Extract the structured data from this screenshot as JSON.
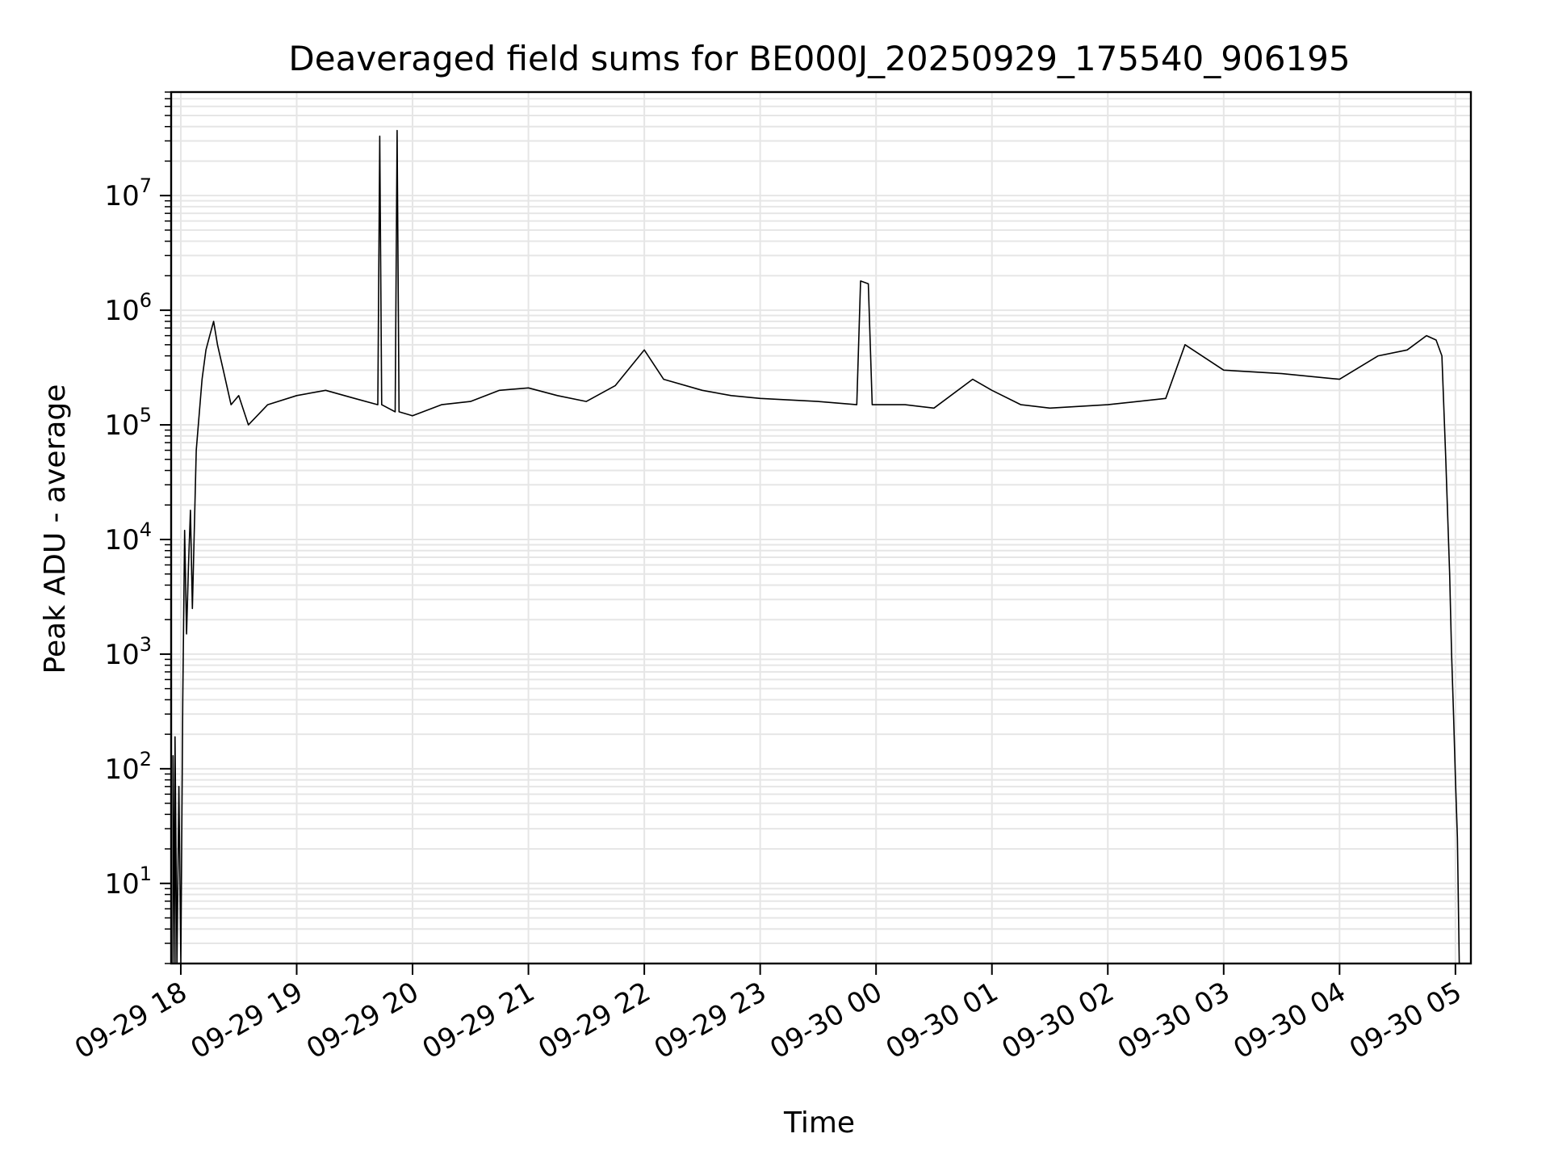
{
  "chart_data": {
    "type": "line",
    "title": "Deaveraged field sums for BE000J_20250929_175540_906195",
    "xlabel": "Time",
    "ylabel": "Peak ADU - average",
    "y_scale": "log",
    "ylim": [
      2,
      80000000
    ],
    "xlim": [
      "2025-09-29 17:55",
      "2025-09-30 05:08"
    ],
    "grid": true,
    "legend": "none",
    "line_color": "#000000",
    "grid_color": "#e6e6e6",
    "x_ticks": [
      {
        "label": "09-29 18",
        "time": "2025-09-29 18:00"
      },
      {
        "label": "09-29 19",
        "time": "2025-09-29 19:00"
      },
      {
        "label": "09-29 20",
        "time": "2025-09-29 20:00"
      },
      {
        "label": "09-29 21",
        "time": "2025-09-29 21:00"
      },
      {
        "label": "09-29 22",
        "time": "2025-09-29 22:00"
      },
      {
        "label": "09-29 23",
        "time": "2025-09-29 23:00"
      },
      {
        "label": "09-30 00",
        "time": "2025-09-30 00:00"
      },
      {
        "label": "09-30 01",
        "time": "2025-09-30 01:00"
      },
      {
        "label": "09-30 02",
        "time": "2025-09-30 02:00"
      },
      {
        "label": "09-30 03",
        "time": "2025-09-30 03:00"
      },
      {
        "label": "09-30 04",
        "time": "2025-09-30 04:00"
      },
      {
        "label": "09-30 05",
        "time": "2025-09-30 05:00"
      }
    ],
    "y_ticks": [
      {
        "base": "10",
        "exp": "1",
        "value": 10
      },
      {
        "base": "10",
        "exp": "2",
        "value": 100
      },
      {
        "base": "10",
        "exp": "3",
        "value": 1000
      },
      {
        "base": "10",
        "exp": "4",
        "value": 10000
      },
      {
        "base": "10",
        "exp": "5",
        "value": 100000
      },
      {
        "base": "10",
        "exp": "6",
        "value": 1000000
      },
      {
        "base": "10",
        "exp": "7",
        "value": 10000000
      }
    ],
    "series": [
      {
        "points": [
          [
            "2025-09-29 17:56",
            2
          ],
          [
            "2025-09-29 17:56",
            130
          ],
          [
            "2025-09-29 17:57",
            2
          ],
          [
            "2025-09-29 17:57",
            190
          ],
          [
            "2025-09-29 17:58",
            2
          ],
          [
            "2025-09-29 17:59",
            70
          ],
          [
            "2025-09-29 18:00",
            2
          ],
          [
            "2025-09-29 18:01",
            400
          ],
          [
            "2025-09-29 18:02",
            12000
          ],
          [
            "2025-09-29 18:03",
            1500
          ],
          [
            "2025-09-29 18:04",
            6000
          ],
          [
            "2025-09-29 18:05",
            18000
          ],
          [
            "2025-09-29 18:06",
            2500
          ],
          [
            "2025-09-29 18:08",
            60000
          ],
          [
            "2025-09-29 18:11",
            250000
          ],
          [
            "2025-09-29 18:13",
            450000
          ],
          [
            "2025-09-29 18:15",
            600000
          ],
          [
            "2025-09-29 18:17",
            800000
          ],
          [
            "2025-09-29 18:19",
            500000
          ],
          [
            "2025-09-29 18:22",
            300000
          ],
          [
            "2025-09-29 18:26",
            150000
          ],
          [
            "2025-09-29 18:30",
            180000
          ],
          [
            "2025-09-29 18:35",
            100000
          ],
          [
            "2025-09-29 18:45",
            150000
          ],
          [
            "2025-09-29 19:00",
            180000
          ],
          [
            "2025-09-29 19:15",
            200000
          ],
          [
            "2025-09-29 19:30",
            170000
          ],
          [
            "2025-09-29 19:42",
            150000
          ],
          [
            "2025-09-29 19:43",
            33000000
          ],
          [
            "2025-09-29 19:44",
            150000
          ],
          [
            "2025-09-29 19:51",
            130000
          ],
          [
            "2025-09-29 19:52",
            37000000
          ],
          [
            "2025-09-29 19:53",
            130000
          ],
          [
            "2025-09-29 20:00",
            120000
          ],
          [
            "2025-09-29 20:15",
            150000
          ],
          [
            "2025-09-29 20:30",
            160000
          ],
          [
            "2025-09-29 20:45",
            200000
          ],
          [
            "2025-09-29 21:00",
            210000
          ],
          [
            "2025-09-29 21:15",
            180000
          ],
          [
            "2025-09-29 21:30",
            160000
          ],
          [
            "2025-09-29 21:45",
            220000
          ],
          [
            "2025-09-29 22:00",
            450000
          ],
          [
            "2025-09-29 22:10",
            250000
          ],
          [
            "2025-09-29 22:30",
            200000
          ],
          [
            "2025-09-29 22:45",
            180000
          ],
          [
            "2025-09-29 23:00",
            170000
          ],
          [
            "2025-09-29 23:30",
            160000
          ],
          [
            "2025-09-29 23:50",
            150000
          ],
          [
            "2025-09-29 23:52",
            1800000
          ],
          [
            "2025-09-29 23:56",
            1700000
          ],
          [
            "2025-09-29 23:58",
            150000
          ],
          [
            "2025-09-30 00:15",
            150000
          ],
          [
            "2025-09-30 00:30",
            140000
          ],
          [
            "2025-09-30 00:50",
            250000
          ],
          [
            "2025-09-30 01:00",
            200000
          ],
          [
            "2025-09-30 01:15",
            150000
          ],
          [
            "2025-09-30 01:30",
            140000
          ],
          [
            "2025-09-30 02:00",
            150000
          ],
          [
            "2025-09-30 02:30",
            170000
          ],
          [
            "2025-09-30 02:40",
            500000
          ],
          [
            "2025-09-30 03:00",
            300000
          ],
          [
            "2025-09-30 03:30",
            280000
          ],
          [
            "2025-09-30 04:00",
            250000
          ],
          [
            "2025-09-30 04:20",
            400000
          ],
          [
            "2025-09-30 04:35",
            450000
          ],
          [
            "2025-09-30 04:45",
            600000
          ],
          [
            "2025-09-30 04:50",
            550000
          ],
          [
            "2025-09-30 04:53",
            400000
          ],
          [
            "2025-09-30 04:55",
            50000
          ],
          [
            "2025-09-30 04:57",
            5000
          ],
          [
            "2025-09-30 04:58",
            1000
          ],
          [
            "2025-09-30 04:59",
            300
          ],
          [
            "2025-09-30 05:00",
            80
          ],
          [
            "2025-09-30 05:01",
            25
          ],
          [
            "2025-09-30 05:02",
            2
          ]
        ]
      }
    ]
  }
}
